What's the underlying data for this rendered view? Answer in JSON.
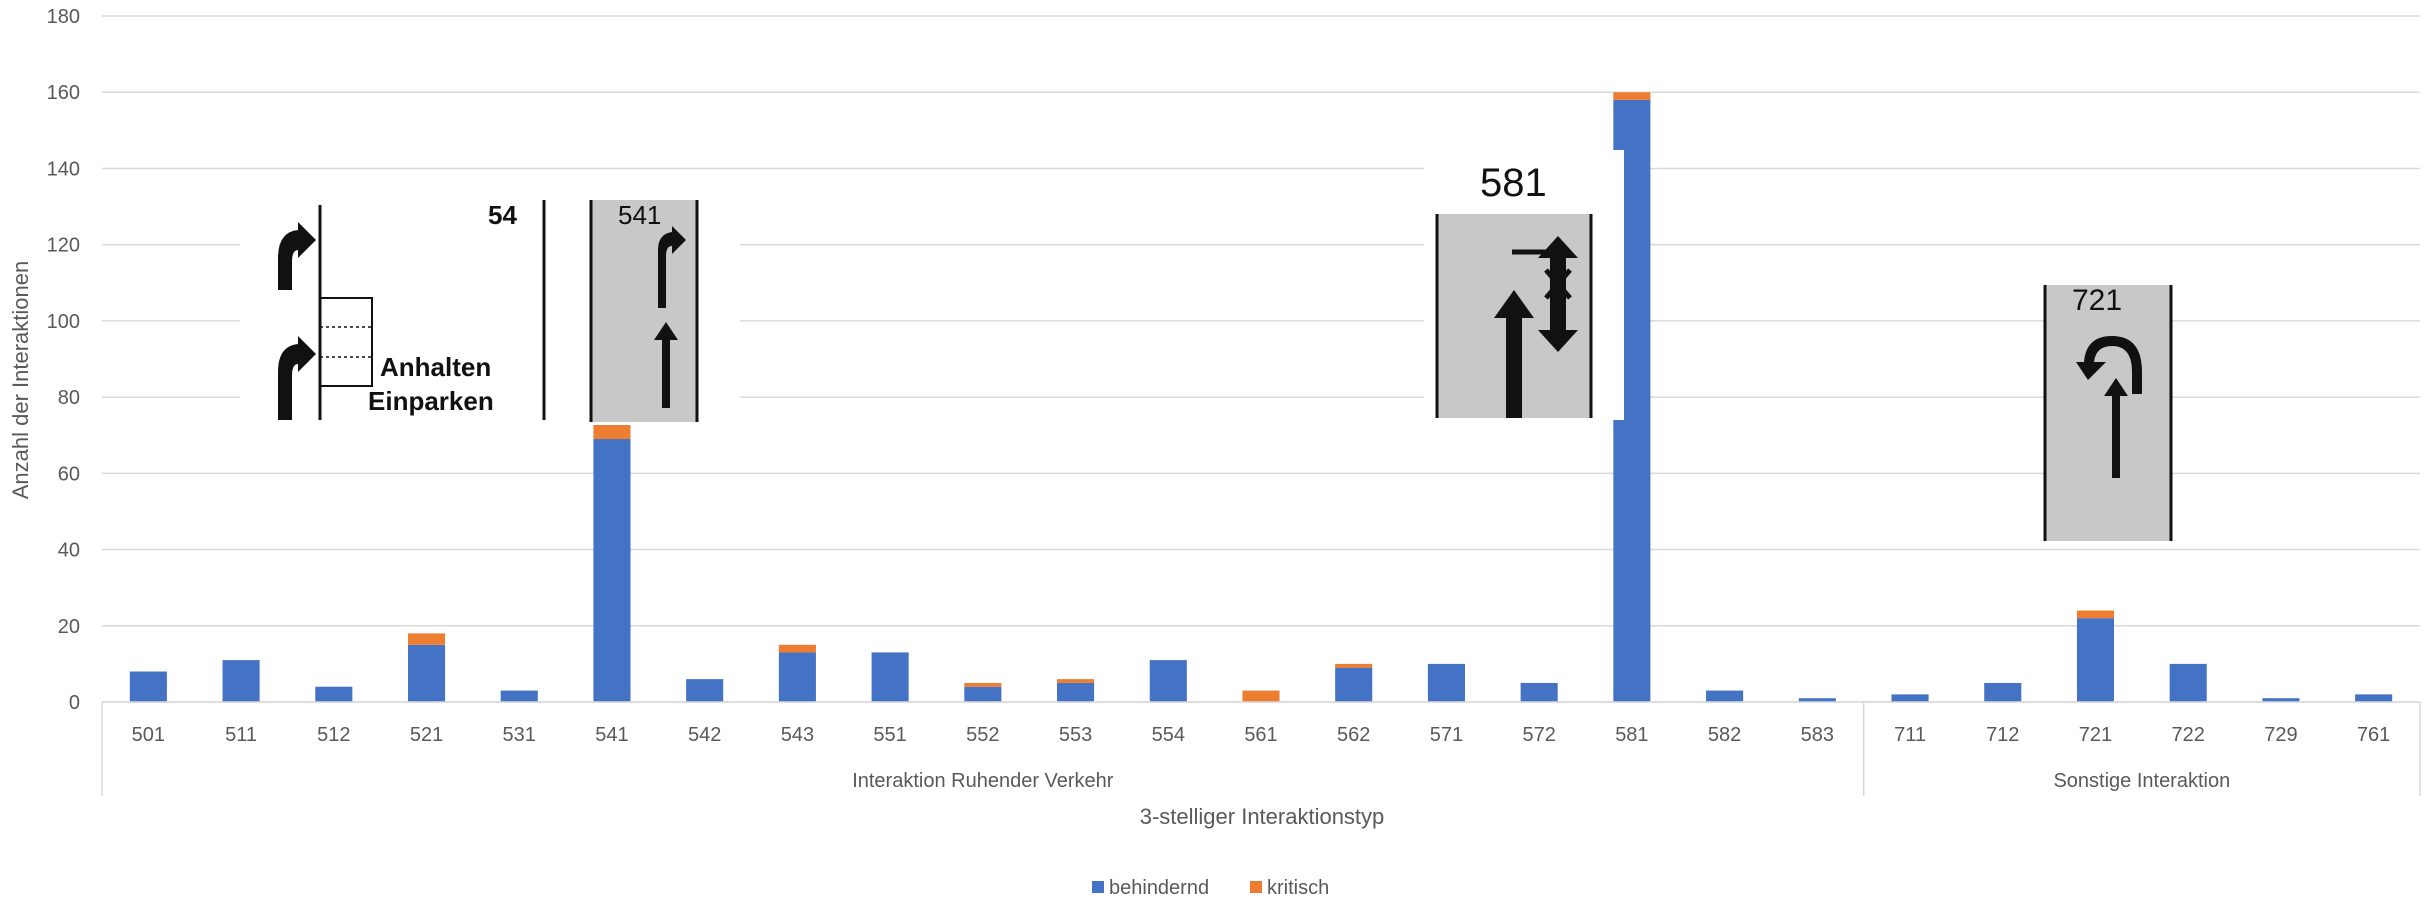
{
  "chart_data": {
    "type": "bar",
    "stacked": true,
    "categories": [
      "501",
      "511",
      "512",
      "521",
      "531",
      "541",
      "542",
      "543",
      "551",
      "552",
      "553",
      "554",
      "561",
      "562",
      "571",
      "572",
      "581",
      "582",
      "583",
      "711",
      "712",
      "721",
      "722",
      "729",
      "761"
    ],
    "series": [
      {
        "name": "behindernd",
        "color": "#4472C4",
        "values": [
          8,
          11,
          4,
          15,
          3,
          69,
          6,
          13,
          13,
          4,
          5,
          11,
          0,
          9,
          10,
          5,
          158,
          3,
          1,
          2,
          5,
          22,
          10,
          1,
          2
        ]
      },
      {
        "name": "kritisch",
        "color": "#ED7D31",
        "values": [
          0,
          0,
          0,
          3,
          0,
          4,
          0,
          2,
          0,
          1,
          1,
          0,
          3,
          1,
          0,
          0,
          2,
          0,
          0,
          0,
          0,
          2,
          0,
          0,
          0
        ]
      }
    ],
    "groups": [
      {
        "label": "Interaktion Ruhender Verkehr",
        "count": 19
      },
      {
        "label": "Sonstige Interaktion",
        "count": 6
      }
    ],
    "xlabel": "3-stelliger Interaktionstyp",
    "ylabel": "Anzahl der Interaktionen",
    "ylim": [
      0,
      180
    ],
    "yticks": [
      0,
      20,
      40,
      60,
      80,
      100,
      120,
      140,
      160,
      180
    ],
    "grid": true,
    "legend_position": "bottom"
  },
  "insets": {
    "sign_54": {
      "number": "54",
      "text1": "Anhalten",
      "text2": "Einparken"
    },
    "sign_541": {
      "number": "541"
    },
    "sign_581": {
      "number": "581"
    },
    "sign_721": {
      "number": "721"
    }
  }
}
